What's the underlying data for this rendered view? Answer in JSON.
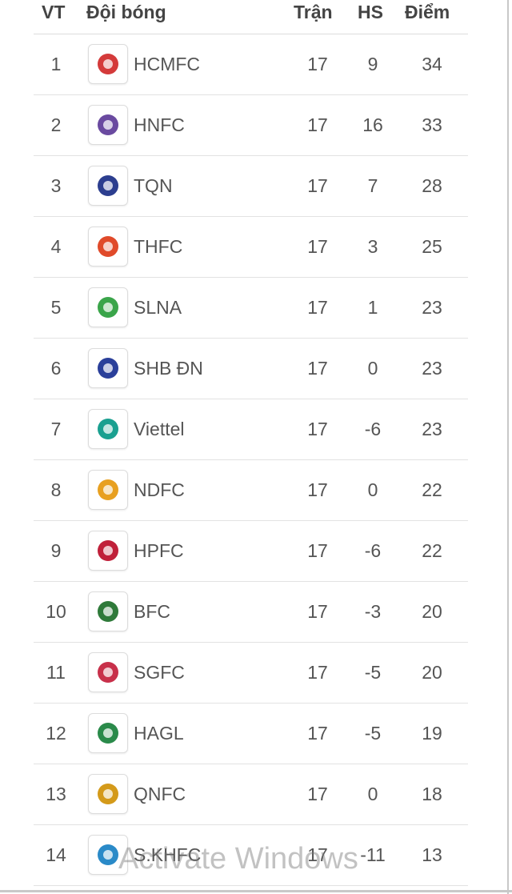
{
  "header": {
    "pos": "VT",
    "team": "Đội bóng",
    "played": "Trận",
    "gd": "HS",
    "pts": "Điểm"
  },
  "rows": [
    {
      "pos": "1",
      "team": "HCMFC",
      "played": "17",
      "gd": "9",
      "pts": "34",
      "logo": "hcmfc-logo",
      "color": "#d43a3a"
    },
    {
      "pos": "2",
      "team": "HNFC",
      "played": "17",
      "gd": "16",
      "pts": "33",
      "logo": "hnfc-logo",
      "color": "#6a4aa0"
    },
    {
      "pos": "3",
      "team": "TQN",
      "played": "17",
      "gd": "7",
      "pts": "28",
      "logo": "tqn-logo",
      "color": "#2c3e8f"
    },
    {
      "pos": "4",
      "team": "THFC",
      "played": "17",
      "gd": "3",
      "pts": "25",
      "logo": "thfc-logo",
      "color": "#e04a2a"
    },
    {
      "pos": "5",
      "team": "SLNA",
      "played": "17",
      "gd": "1",
      "pts": "23",
      "logo": "slna-logo",
      "color": "#3aa54a"
    },
    {
      "pos": "6",
      "team": "SHB ĐN",
      "played": "17",
      "gd": "0",
      "pts": "23",
      "logo": "shbdn-logo",
      "color": "#2a3f9a"
    },
    {
      "pos": "7",
      "team": "Viettel",
      "played": "17",
      "gd": "-6",
      "pts": "23",
      "logo": "viettel-logo",
      "color": "#1aa090"
    },
    {
      "pos": "8",
      "team": "NDFC",
      "played": "17",
      "gd": "0",
      "pts": "22",
      "logo": "ndfc-logo",
      "color": "#e8a020"
    },
    {
      "pos": "9",
      "team": "HPFC",
      "played": "17",
      "gd": "-6",
      "pts": "22",
      "logo": "hpfc-logo",
      "color": "#c0203a"
    },
    {
      "pos": "10",
      "team": "BFC",
      "played": "17",
      "gd": "-3",
      "pts": "20",
      "logo": "bfc-logo",
      "color": "#2f7a3a"
    },
    {
      "pos": "11",
      "team": "SGFC",
      "played": "17",
      "gd": "-5",
      "pts": "20",
      "logo": "sgfc-logo",
      "color": "#c8304a"
    },
    {
      "pos": "12",
      "team": "HAGL",
      "played": "17",
      "gd": "-5",
      "pts": "19",
      "logo": "hagl-logo",
      "color": "#2a8a4a"
    },
    {
      "pos": "13",
      "team": "QNFC",
      "played": "17",
      "gd": "0",
      "pts": "18",
      "logo": "qnfc-logo",
      "color": "#d49a1a"
    },
    {
      "pos": "14",
      "team": "S.KHFC",
      "played": "17",
      "gd": "-11",
      "pts": "13",
      "logo": "skhfc-logo",
      "color": "#2a8ac8"
    }
  ],
  "watermark": "Activate Windows"
}
